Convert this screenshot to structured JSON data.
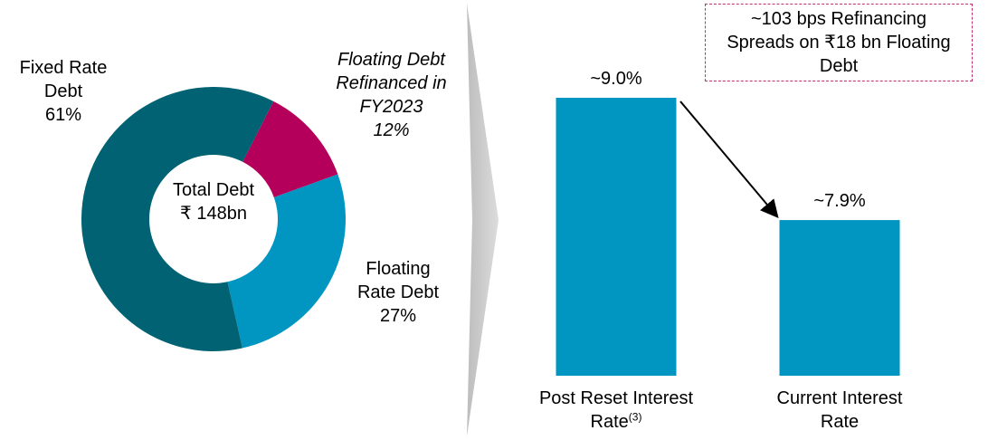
{
  "chart_data": [
    {
      "type": "donut",
      "categories": [
        "Floating Debt Refinanced in FY2023",
        "Floating Rate Debt",
        "Fixed Rate Debt"
      ],
      "values": [
        12,
        27,
        61
      ],
      "value_labels": [
        "12%",
        "27%",
        "61%"
      ],
      "colors": [
        "#b5005b",
        "#0096c1",
        "#006272"
      ],
      "center_label": [
        "Total Debt",
        "₹ 148bn"
      ]
    },
    {
      "type": "bar",
      "categories": [
        "Post Reset Interest Rate",
        "Current Interest Rate"
      ],
      "category_notes": [
        "(3)",
        null
      ],
      "values": [
        9.0,
        7.9
      ],
      "value_labels": [
        "~9.0%",
        "~7.9%"
      ],
      "color": "#0096c1",
      "ylim": [
        6.5,
        9.5
      ],
      "annotation": "~103 bps Refinancing Spreads on ₹18 bn Floating Debt"
    }
  ]
}
